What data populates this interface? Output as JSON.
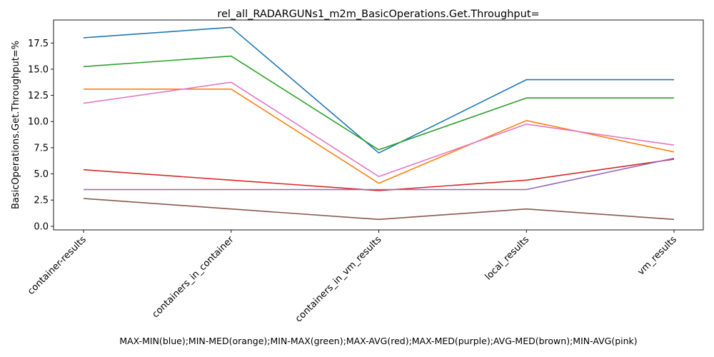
{
  "chart_data": {
    "type": "line",
    "title": "rel_all_RADARGUNs1_m2m_BasicOperations.Get.Throughput=",
    "xlabel": "",
    "ylabel": "BasicOperations.Get.Throughput=%",
    "caption": "MAX-MIN(blue);MIN-MED(orange);MIN-MAX(green);MAX-AVG(red);MAX-MED(purple);AVG-MED(brown);MIN-AVG(pink)",
    "categories": [
      "container-results",
      "containers_in_container",
      "containers_in_vm_results",
      "local_results",
      "vm_results"
    ],
    "ylim": [
      -0.35,
      19.7
    ],
    "yticks": [
      "0.0",
      "2.5",
      "5.0",
      "7.5",
      "10.0",
      "12.5",
      "15.0",
      "17.5"
    ],
    "grid": false,
    "series": [
      {
        "color": "#1f77b4",
        "values": [
          18.0,
          19.0,
          7.0,
          14.0,
          14.0
        ]
      },
      {
        "color": "#ff7f0e",
        "values": [
          13.1,
          13.1,
          4.1,
          10.1,
          7.1
        ]
      },
      {
        "color": "#2ca02c",
        "values": [
          15.25,
          16.25,
          7.3,
          12.25,
          12.25
        ]
      },
      {
        "color": "#d62728",
        "values": [
          5.4,
          4.4,
          3.4,
          4.4,
          6.4
        ]
      },
      {
        "color": "#9467bd",
        "values": [
          3.5,
          3.5,
          3.5,
          3.5,
          6.5
        ]
      },
      {
        "color": "#8c564b",
        "values": [
          2.65,
          1.65,
          0.65,
          1.65,
          0.65
        ]
      },
      {
        "color": "#e377c2",
        "values": [
          11.75,
          13.75,
          4.75,
          9.75,
          7.75
        ]
      }
    ]
  }
}
